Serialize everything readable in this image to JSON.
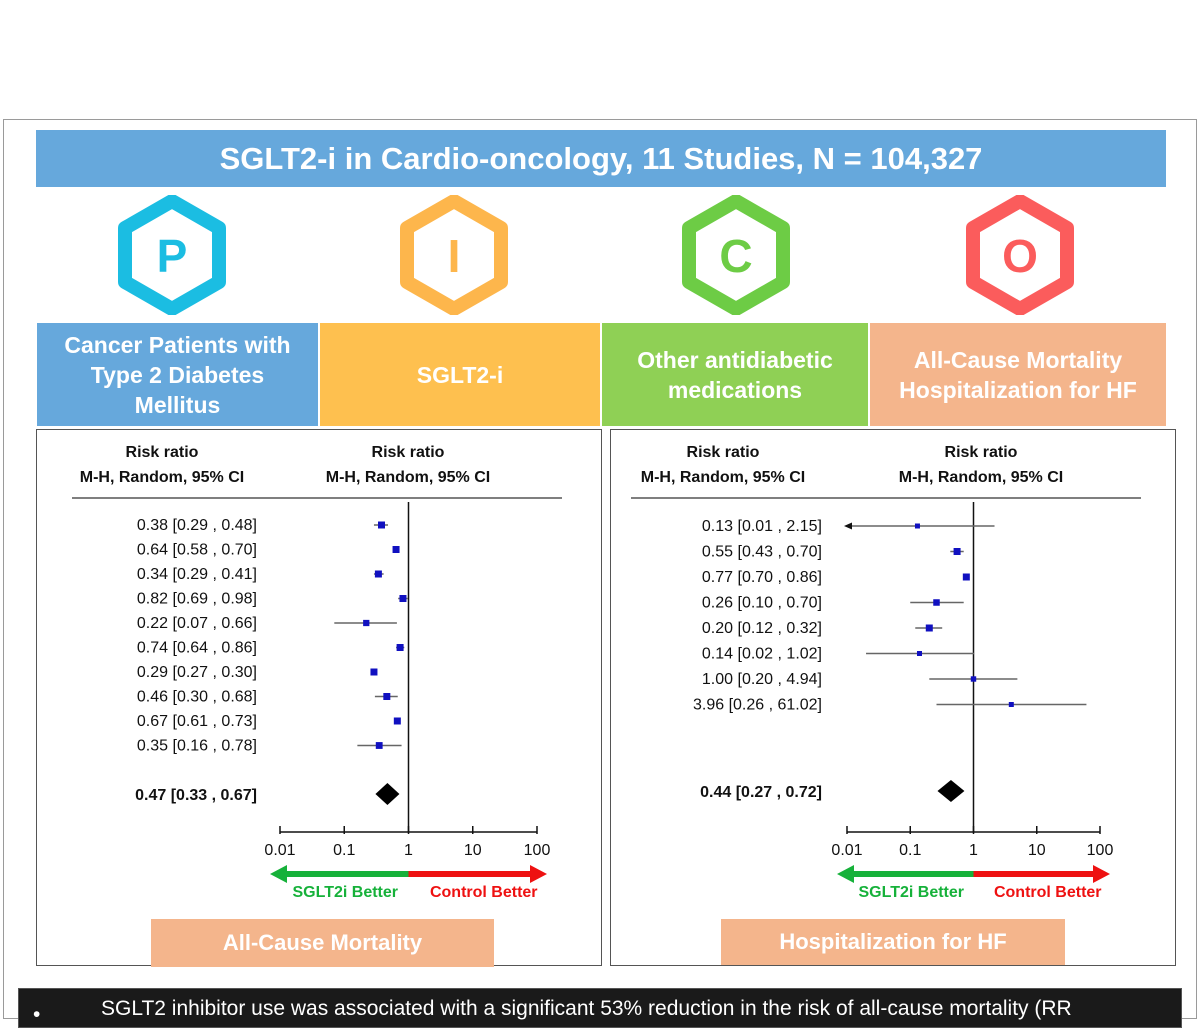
{
  "title": "SGLT2-i in Cardio-oncology, 11 Studies,  N = 104,327",
  "pico": [
    {
      "letter": "P",
      "color": "#1bbde2",
      "text": "Cancer Patients with\nType 2 Diabetes\nMellitus",
      "box_color": "#66a8dc"
    },
    {
      "letter": "I",
      "color": "#fdb64c",
      "text": "SGLT2-i",
      "box_color": "#fec04f"
    },
    {
      "letter": "C",
      "color": "#6dcc45",
      "text": "Other antidiabetic\nmedications",
      "box_color": "#8fd055"
    },
    {
      "letter": "O",
      "color": "#fb5c5c",
      "text": "All-Cause Mortality\nHospitalization for HF",
      "box_color": "#f4b58c"
    }
  ],
  "chart_data": [
    {
      "type": "forest",
      "header_left": "Risk ratio",
      "header_left_sub": "M-H, Random, 95% CI",
      "header_right": "Risk ratio",
      "header_right_sub": "M-H, Random, 95% CI",
      "scale": "log",
      "ticks": [
        "0.01",
        "0.1",
        "1",
        "10",
        "100"
      ],
      "xlim": [
        0.01,
        100
      ],
      "studies": [
        {
          "rr": 0.38,
          "lo": 0.29,
          "hi": 0.48,
          "label": "0.38 [0.29 , 0.48]"
        },
        {
          "rr": 0.64,
          "lo": 0.58,
          "hi": 0.7,
          "label": "0.64 [0.58 , 0.70]"
        },
        {
          "rr": 0.34,
          "lo": 0.29,
          "hi": 0.41,
          "label": "0.34 [0.29 , 0.41]"
        },
        {
          "rr": 0.82,
          "lo": 0.69,
          "hi": 0.98,
          "label": "0.82 [0.69 , 0.98]"
        },
        {
          "rr": 0.22,
          "lo": 0.07,
          "hi": 0.66,
          "label": "0.22 [0.07 , 0.66]"
        },
        {
          "rr": 0.74,
          "lo": 0.64,
          "hi": 0.86,
          "label": "0.74 [0.64 , 0.86]"
        },
        {
          "rr": 0.29,
          "lo": 0.27,
          "hi": 0.3,
          "label": "0.29 [0.27 , 0.30]"
        },
        {
          "rr": 0.46,
          "lo": 0.3,
          "hi": 0.68,
          "label": "0.46 [0.30 , 0.68]"
        },
        {
          "rr": 0.67,
          "lo": 0.61,
          "hi": 0.73,
          "label": "0.67 [0.61 , 0.73]"
        },
        {
          "rr": 0.35,
          "lo": 0.16,
          "hi": 0.78,
          "label": "0.35 [0.16 , 0.78]"
        }
      ],
      "pooled": {
        "rr": 0.47,
        "lo": 0.33,
        "hi": 0.67,
        "label": "0.47 [0.33 , 0.67]"
      },
      "favours_left": "SGLT2i Better",
      "favours_right": "Control Better",
      "outcome": "All-Cause Mortality"
    },
    {
      "type": "forest",
      "header_left": "Risk ratio",
      "header_left_sub": "M-H, Random, 95% CI",
      "header_right": "Risk ratio",
      "header_right_sub": "M-H, Random, 95% CI",
      "scale": "log",
      "ticks": [
        "0.01",
        "0.1",
        "1",
        "10",
        "100"
      ],
      "xlim": [
        0.01,
        100
      ],
      "studies": [
        {
          "rr": 0.13,
          "lo": 0.01,
          "hi": 2.15,
          "label": "0.13 [0.01 , 2.15]",
          "arrow_left": true
        },
        {
          "rr": 0.55,
          "lo": 0.43,
          "hi": 0.7,
          "label": "0.55 [0.43 , 0.70]"
        },
        {
          "rr": 0.77,
          "lo": 0.7,
          "hi": 0.86,
          "label": "0.77 [0.70 , 0.86]"
        },
        {
          "rr": 0.26,
          "lo": 0.1,
          "hi": 0.7,
          "label": "0.26 [0.10 , 0.70]"
        },
        {
          "rr": 0.2,
          "lo": 0.12,
          "hi": 0.32,
          "label": "0.20 [0.12 , 0.32]"
        },
        {
          "rr": 0.14,
          "lo": 0.02,
          "hi": 1.02,
          "label": "0.14 [0.02 , 1.02]"
        },
        {
          "rr": 1.0,
          "lo": 0.2,
          "hi": 4.94,
          "label": "1.00 [0.20 , 4.94]"
        },
        {
          "rr": 3.96,
          "lo": 0.26,
          "hi": 61.02,
          "label": "3.96 [0.26 , 61.02]"
        }
      ],
      "pooled": {
        "rr": 0.44,
        "lo": 0.27,
        "hi": 0.72,
        "label": "0.44 [0.27 , 0.72]"
      },
      "favours_left": "SGLT2i Better",
      "favours_right": "Control Better",
      "outcome": "Hospitalization for HF"
    }
  ],
  "summary": {
    "bullet": "•",
    "text": "SGLT2 inhibitor use was associated with a significant 53% reduction in the risk of all-cause mortality (RR"
  },
  "colors": {
    "favour_left": "#16b13a",
    "favour_right": "#ee1111",
    "marker": "#1010c0"
  }
}
